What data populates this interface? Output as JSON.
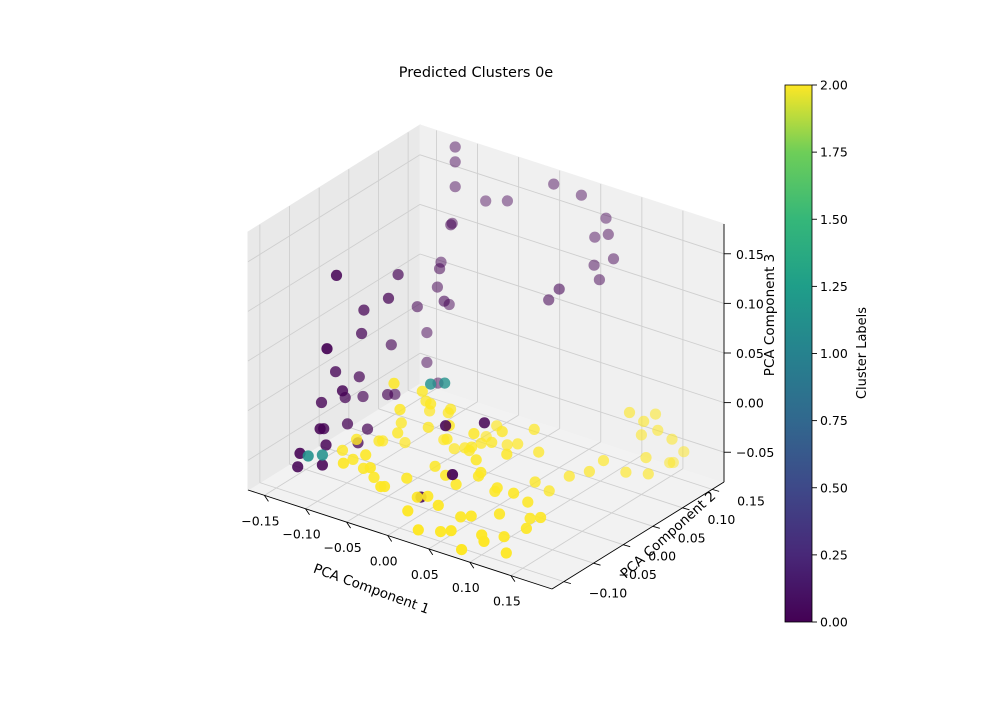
{
  "chart_data": {
    "type": "scatter",
    "title": "Predicted Clusters 0e",
    "xlabel": "PCA Component 1",
    "ylabel": "PCA Component 2",
    "zlabel": "PCA Component 3",
    "colorbar_label": "Cluster Labels",
    "xlim": [
      -0.17,
      0.2
    ],
    "ylim": [
      -0.12,
      0.17
    ],
    "zlim": [
      -0.08,
      0.18
    ],
    "x_ticks": [
      -0.15,
      -0.1,
      -0.05,
      0.0,
      0.05,
      0.1,
      0.15
    ],
    "y_ticks": [
      -0.1,
      -0.05,
      0.0,
      0.05,
      0.1,
      0.15
    ],
    "z_ticks": [
      -0.05,
      0.0,
      0.05,
      0.1,
      0.15
    ],
    "x_tick_labels": [
      "−0.15",
      "−0.10",
      "−0.05",
      "0.00",
      "0.05",
      "0.10",
      "0.15"
    ],
    "y_tick_labels": [
      "−0.10",
      "−0.05",
      "0.00",
      "0.05",
      "0.10",
      "0.15"
    ],
    "z_tick_labels": [
      "−0.05",
      "0.00",
      "0.05",
      "0.10",
      "0.15"
    ],
    "colorbar_range": [
      0,
      2
    ],
    "colorbar_ticks": [
      0,
      0.25,
      0.5,
      0.75,
      1,
      1.25,
      1.5,
      1.75,
      2
    ],
    "colorbar_tick_labels": [
      "0.00",
      "0.25",
      "0.50",
      "0.75",
      "1.00",
      "1.25",
      "1.50",
      "1.75",
      "2.00"
    ],
    "colormap": "viridis",
    "grid": true,
    "colors": {
      "cluster_0": "#440154",
      "cluster_1": "#21918c",
      "cluster_2": "#fde725"
    },
    "clusters": [
      {
        "label": 0,
        "points": [
          [
            -0.12,
            0.16,
            0.175
          ],
          [
            -0.12,
            0.16,
            0.16
          ],
          [
            -0.12,
            0.16,
            0.135
          ],
          [
            -0.12,
            0.155,
            0.1
          ],
          [
            -0.13,
            0.15,
            0.06
          ],
          [
            -0.12,
            0.15,
            0.02
          ],
          [
            -0.14,
            0.14,
            -0.01
          ],
          [
            -0.14,
            0.14,
            -0.04
          ],
          [
            -0.13,
            0.145,
            -0.06
          ],
          [
            -0.1,
            0.125,
            0.115
          ],
          [
            -0.06,
            0.165,
            0.135
          ],
          [
            -0.09,
            0.17,
            0.125
          ],
          [
            0.0,
            0.16,
            0.17
          ],
          [
            0.03,
            0.165,
            0.165
          ],
          [
            0.06,
            0.165,
            0.15
          ],
          [
            0.05,
            0.16,
            0.13
          ],
          [
            -0.11,
            0.12,
            0.07
          ],
          [
            -0.12,
            0.13,
            0.045
          ],
          [
            -0.13,
            0.11,
            0.03
          ],
          [
            -0.11,
            0.05,
            0.09
          ],
          [
            -0.14,
            0.08,
            0.0
          ],
          [
            -0.1,
            0.02,
            0.08
          ],
          [
            -0.14,
            0.03,
            0.03
          ],
          [
            -0.15,
            0.04,
            -0.02
          ],
          [
            -0.13,
            0.06,
            -0.04
          ],
          [
            -0.15,
            0.1,
            -0.06
          ],
          [
            -0.12,
            -0.03,
            0.0
          ],
          [
            -0.09,
            0.1,
            0.05
          ],
          [
            -0.12,
            -0.04,
            0.12
          ],
          [
            -0.16,
            0.06,
            -0.05
          ],
          [
            -0.13,
            0.02,
            0.06
          ],
          [
            -0.15,
            0.0,
            0.0
          ],
          [
            -0.16,
            -0.01,
            -0.03
          ],
          [
            -0.15,
            -0.02,
            -0.05
          ],
          [
            -0.14,
            -0.03,
            -0.06
          ],
          [
            -0.16,
            -0.05,
            -0.08
          ],
          [
            -0.13,
            0.01,
            -0.07
          ],
          [
            -0.11,
            -0.07,
            0.06
          ],
          [
            0.07,
            0.155,
            0.14
          ],
          [
            0.08,
            0.15,
            0.12
          ],
          [
            0.06,
            0.145,
            0.11
          ],
          [
            0.07,
            0.14,
            0.1
          ],
          [
            0.03,
            0.11,
            0.08
          ],
          [
            0.05,
            0.1,
            0.1
          ],
          [
            -0.14,
            0.04,
            -0.07
          ],
          [
            -0.15,
            0.02,
            -0.06
          ],
          [
            -0.16,
            0.03,
            -0.04
          ],
          [
            -0.14,
            -0.04,
            -0.04
          ],
          [
            -0.13,
            -0.05,
            -0.07
          ],
          [
            -0.15,
            -0.06,
            -0.06
          ],
          [
            0.02,
            -0.05,
            0.01
          ],
          [
            0.06,
            -0.04,
            0.02
          ],
          [
            -0.01,
            -0.05,
            -0.07
          ],
          [
            0.05,
            -0.08,
            -0.02
          ]
        ]
      },
      {
        "label": 1,
        "points": [
          [
            -0.02,
            -0.02,
            0.03
          ],
          [
            -0.01,
            -0.01,
            0.03
          ],
          [
            -0.14,
            -0.06,
            -0.06
          ],
          [
            -0.13,
            -0.05,
            -0.06
          ]
        ]
      },
      {
        "label": 2,
        "points": [
          [
            -0.05,
            -0.04,
            0.03
          ],
          [
            -0.05,
            -0.03,
            0.0
          ],
          [
            -0.03,
            -0.02,
            0.02
          ],
          [
            -0.02,
            -0.02,
            0.01
          ],
          [
            -0.06,
            -0.02,
            -0.03
          ],
          [
            -0.07,
            0.0,
            -0.03
          ],
          [
            -0.05,
            0.02,
            -0.02
          ],
          [
            -0.04,
            0.0,
            0.0
          ],
          [
            -0.03,
            -0.01,
            -0.02
          ],
          [
            -0.02,
            0.01,
            -0.01
          ],
          [
            -0.01,
            0.0,
            0.0
          ],
          [
            0.0,
            -0.02,
            -0.02
          ],
          [
            0.01,
            -0.03,
            0.0
          ],
          [
            0.02,
            -0.01,
            -0.03
          ],
          [
            0.03,
            -0.02,
            -0.02
          ],
          [
            0.04,
            -0.03,
            0.0
          ],
          [
            0.05,
            -0.04,
            -0.02
          ],
          [
            0.06,
            -0.05,
            -0.03
          ],
          [
            0.07,
            -0.06,
            -0.02
          ],
          [
            0.08,
            -0.05,
            -0.04
          ],
          [
            0.09,
            -0.06,
            -0.03
          ],
          [
            0.1,
            -0.07,
            -0.05
          ],
          [
            0.11,
            -0.06,
            -0.03
          ],
          [
            0.12,
            -0.05,
            -0.04
          ],
          [
            0.08,
            -0.03,
            -0.01
          ],
          [
            0.06,
            -0.01,
            0.0
          ],
          [
            0.04,
            0.0,
            -0.02
          ],
          [
            0.02,
            0.01,
            -0.03
          ],
          [
            0.0,
            0.01,
            -0.04
          ],
          [
            -0.02,
            0.02,
            -0.05
          ],
          [
            -0.04,
            0.03,
            -0.05
          ],
          [
            -0.08,
            0.02,
            -0.06
          ],
          [
            -0.1,
            0.01,
            -0.06
          ],
          [
            -0.09,
            -0.01,
            -0.05
          ],
          [
            -0.11,
            -0.02,
            -0.05
          ],
          [
            -0.12,
            -0.03,
            -0.06
          ],
          [
            -0.1,
            -0.04,
            -0.06
          ],
          [
            -0.08,
            -0.05,
            -0.06
          ],
          [
            -0.06,
            -0.06,
            -0.06
          ],
          [
            -0.04,
            -0.07,
            -0.06
          ],
          [
            -0.02,
            -0.06,
            -0.05
          ],
          [
            0.0,
            -0.07,
            -0.06
          ],
          [
            0.02,
            -0.08,
            -0.05
          ],
          [
            0.04,
            -0.09,
            -0.05
          ],
          [
            0.06,
            -0.08,
            -0.06
          ],
          [
            0.08,
            -0.09,
            -0.05
          ],
          [
            0.1,
            -0.1,
            -0.06
          ],
          [
            0.12,
            -0.09,
            -0.06
          ],
          [
            0.14,
            -0.08,
            -0.05
          ],
          [
            0.15,
            -0.07,
            -0.04
          ],
          [
            0.13,
            -0.06,
            -0.05
          ],
          [
            0.15,
            0.08,
            0.01
          ],
          [
            0.16,
            0.09,
            0.0
          ],
          [
            0.17,
            0.1,
            -0.01
          ],
          [
            0.18,
            0.11,
            -0.02
          ],
          [
            0.16,
            0.11,
            0.0
          ],
          [
            0.15,
            0.1,
            -0.02
          ],
          [
            0.17,
            0.08,
            -0.03
          ],
          [
            0.18,
            0.07,
            -0.04
          ],
          [
            0.16,
            0.06,
            -0.04
          ],
          [
            0.14,
            0.05,
            -0.03
          ],
          [
            0.13,
            0.04,
            -0.04
          ],
          [
            0.12,
            0.02,
            -0.04
          ],
          [
            0.11,
            0.0,
            -0.05
          ],
          [
            0.1,
            -0.01,
            -0.04
          ],
          [
            0.09,
            0.01,
            -0.02
          ],
          [
            0.07,
            0.03,
            -0.01
          ],
          [
            0.05,
            0.03,
            -0.03
          ],
          [
            0.03,
            0.04,
            -0.04
          ],
          [
            0.01,
            0.05,
            -0.03
          ],
          [
            -0.01,
            0.06,
            -0.05
          ],
          [
            0.17,
            0.12,
            -0.05
          ],
          [
            0.18,
            0.13,
            -0.04
          ],
          [
            0.16,
            0.14,
            -0.06
          ],
          [
            -0.07,
            -0.06,
            -0.04
          ],
          [
            -0.09,
            -0.07,
            -0.05
          ],
          [
            -0.05,
            -0.08,
            -0.04
          ],
          [
            -0.03,
            -0.09,
            -0.05
          ],
          [
            0.01,
            -0.1,
            -0.06
          ],
          [
            0.03,
            -0.11,
            -0.07
          ],
          [
            0.05,
            -0.1,
            -0.07
          ],
          [
            0.07,
            -0.11,
            -0.06
          ],
          [
            0.09,
            -0.12,
            -0.07
          ],
          [
            0.11,
            -0.11,
            -0.06
          ],
          [
            0.13,
            -0.1,
            -0.07
          ],
          [
            0.0,
            -0.04,
            -0.04
          ],
          [
            0.02,
            -0.05,
            -0.04
          ],
          [
            0.04,
            -0.06,
            -0.04
          ]
        ]
      }
    ]
  }
}
